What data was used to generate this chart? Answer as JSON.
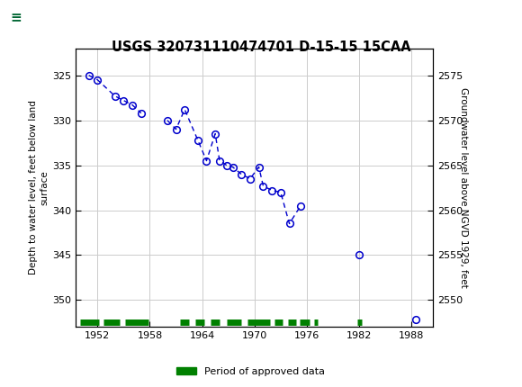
{
  "title": "USGS 320731110474701 D-15-15 15CAA",
  "ylabel_left": "Depth to water level, feet below land\nsurface",
  "ylabel_right": "Groundwater level above NGVD 1929, feet",
  "ylim_left": [
    353,
    322
  ],
  "ylim_right": [
    2547,
    2578
  ],
  "xlim": [
    1949.5,
    1990.5
  ],
  "xticks": [
    1952,
    1958,
    1964,
    1970,
    1976,
    1982,
    1988
  ],
  "yticks_left": [
    325,
    330,
    335,
    340,
    345,
    350
  ],
  "yticks_right": [
    2575,
    2570,
    2565,
    2560,
    2555,
    2550
  ],
  "data_x": [
    1951.0,
    1952.0,
    1954.0,
    1955.0,
    1956.0,
    1957.0,
    1960.0,
    1961.0,
    1962.0,
    1963.5,
    1964.5,
    1965.5,
    1966.0,
    1966.8,
    1967.5,
    1968.5,
    1969.5,
    1970.5,
    1971.0,
    1972.0,
    1973.0,
    1974.0,
    1975.3,
    1982.0,
    1988.5
  ],
  "data_y": [
    325.0,
    325.5,
    327.3,
    327.8,
    328.3,
    329.2,
    330.0,
    331.0,
    328.8,
    332.2,
    334.5,
    331.5,
    334.5,
    335.0,
    335.2,
    336.0,
    336.5,
    335.2,
    337.3,
    337.8,
    338.0,
    341.5,
    339.5,
    345.0,
    352.2
  ],
  "connect_groups": [
    [
      0,
      1,
      2,
      3,
      4,
      5
    ],
    [
      6,
      7,
      8,
      9,
      10,
      11,
      12,
      13,
      14,
      15,
      16,
      17,
      18,
      19,
      20,
      21,
      22
    ]
  ],
  "line_color": "#0000cc",
  "marker_color": "#0000cc",
  "green_bar_color": "#008000",
  "header_bg": "#006633",
  "header_text_color": "#ffffff",
  "grid_color": "#cccccc",
  "bg_color": "#ffffff",
  "green_segments": [
    [
      1950.0,
      1952.2
    ],
    [
      1952.7,
      1954.5
    ],
    [
      1955.2,
      1957.8
    ],
    [
      1961.5,
      1962.5
    ],
    [
      1963.2,
      1964.2
    ],
    [
      1965.0,
      1966.0
    ],
    [
      1966.8,
      1968.5
    ],
    [
      1969.2,
      1971.8
    ],
    [
      1972.3,
      1973.2
    ],
    [
      1973.8,
      1974.8
    ],
    [
      1975.2,
      1976.3
    ],
    [
      1976.8,
      1977.3
    ],
    [
      1981.8,
      1982.3
    ]
  ]
}
